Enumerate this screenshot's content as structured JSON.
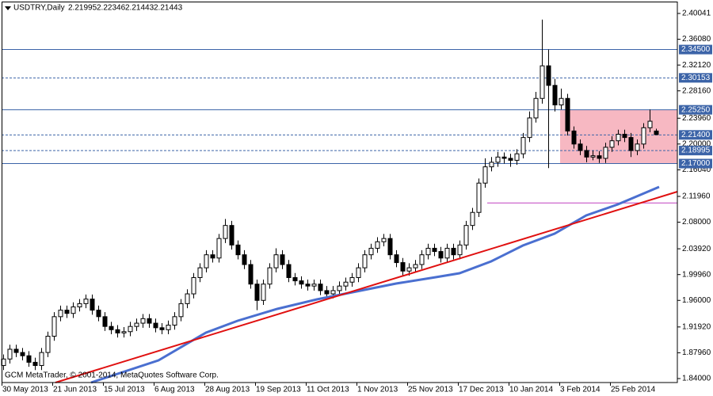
{
  "chart_data": {
    "type": "candlestick",
    "symbol": "USDTRY,Daily",
    "footer": "GCM MetaTrader, © 2001-2014, MetaQuotes Software Corp.",
    "ylim": [
      1.8339,
      2.4174
    ],
    "yticks": [
      2.40041,
      {
        "value": 2.3608,
        "label": "2.36080"
      },
      {
        "value": 2.3212,
        "label": "2.32120"
      },
      {
        "value": 2.2816,
        "label": "2.28160"
      },
      {
        "value": 2.2396,
        "label": "2.23960"
      },
      {
        "value": 2.2,
        "label": "2.20000"
      },
      {
        "value": 2.1604,
        "label": "2.16040"
      },
      {
        "value": 2.1196,
        "label": "2.11960"
      },
      {
        "value": 2.08,
        "label": "2.08000"
      },
      {
        "value": 2.0392,
        "label": "2.03920"
      },
      {
        "value": 1.9996,
        "label": "1.99960"
      },
      {
        "value": 1.96,
        "label": "1.96000"
      },
      {
        "value": 1.9192,
        "label": "1.91920"
      },
      {
        "value": 1.8796,
        "label": "1.87960"
      },
      {
        "value": 1.84,
        "label": "1.84000"
      }
    ],
    "levels": [
      {
        "value": 2.345,
        "label": "2.34500",
        "style": "solid"
      },
      {
        "value": 2.30153,
        "style": "dashed"
      },
      {
        "value": 2.2525,
        "label": "2.25250",
        "style": "solid"
      },
      {
        "value": 2.214,
        "label": "2.21400",
        "style": "dashed"
      },
      {
        "value": 2.18995,
        "style": "dashed"
      },
      {
        "value": 2.17,
        "label": "2.17000",
        "style": "solid"
      }
    ],
    "zone": [
      2.17,
      2.2525
    ],
    "horizontal_line": 2.1096,
    "bull_color": "#ffffff",
    "bear_color": "#000000",
    "level_color": "#3c64a8",
    "zone_color": "#f7b8c2",
    "categories": [
      "30 May 2013",
      null,
      null,
      null,
      null,
      null,
      null,
      null,
      "21 Jun 2013",
      null,
      null,
      null,
      null,
      null,
      null,
      null,
      "15 Jul 2013",
      null,
      null,
      null,
      null,
      null,
      null,
      null,
      "6 Aug 2013",
      null,
      null,
      null,
      null,
      null,
      null,
      null,
      "28 Aug 2013",
      null,
      null,
      null,
      null,
      null,
      null,
      null,
      "19 Sep 2013",
      null,
      null,
      null,
      null,
      null,
      null,
      null,
      "11 Oct 2013",
      null,
      null,
      null,
      null,
      null,
      null,
      null,
      "1 Nov 2013",
      null,
      null,
      null,
      null,
      null,
      null,
      null,
      "25 Nov 2013",
      null,
      null,
      null,
      null,
      null,
      null,
      null,
      "17 Dec 2013",
      null,
      null,
      null,
      null,
      null,
      null,
      null,
      "10 Jan 2014",
      null,
      null,
      null,
      null,
      null,
      null,
      null,
      "3 Feb 2014",
      null,
      null,
      null,
      null,
      null,
      null,
      null,
      "25 Feb 2014",
      null,
      null,
      null,
      null,
      null,
      null,
      null
    ],
    "candles": [
      [
        1.86,
        1.877,
        1.853,
        1.87
      ],
      [
        1.87,
        1.892,
        1.863,
        1.885
      ],
      [
        1.885,
        1.892,
        1.873,
        1.88
      ],
      [
        1.88,
        1.887,
        1.868,
        1.875
      ],
      [
        1.875,
        1.882,
        1.858,
        1.865
      ],
      [
        1.865,
        1.872,
        1.853,
        1.86
      ],
      [
        1.86,
        1.887,
        1.853,
        1.88
      ],
      [
        1.88,
        1.912,
        1.873,
        1.905
      ],
      [
        1.905,
        1.942,
        1.898,
        1.935
      ],
      [
        1.935,
        1.952,
        1.928,
        1.945
      ],
      [
        1.945,
        1.952,
        1.933,
        1.94
      ],
      [
        1.94,
        1.957,
        1.933,
        1.95
      ],
      [
        1.95,
        1.962,
        1.943,
        1.955
      ],
      [
        1.955,
        1.969,
        1.948,
        1.962
      ],
      [
        1.962,
        1.969,
        1.938,
        1.945
      ],
      [
        1.945,
        1.952,
        1.928,
        1.935
      ],
      [
        1.935,
        1.942,
        1.913,
        1.92
      ],
      [
        1.92,
        1.927,
        1.908,
        1.915
      ],
      [
        1.915,
        1.922,
        1.903,
        1.91
      ],
      [
        1.91,
        1.919,
        1.903,
        1.912
      ],
      [
        1.912,
        1.927,
        1.905,
        1.92
      ],
      [
        1.92,
        1.932,
        1.913,
        1.925
      ],
      [
        1.925,
        1.939,
        1.918,
        1.932
      ],
      [
        1.932,
        1.939,
        1.918,
        1.925
      ],
      [
        1.925,
        1.932,
        1.911,
        1.918
      ],
      [
        1.918,
        1.925,
        1.908,
        1.915
      ],
      [
        1.915,
        1.929,
        1.908,
        1.922
      ],
      [
        1.922,
        1.942,
        1.915,
        1.935
      ],
      [
        1.935,
        1.962,
        1.928,
        1.955
      ],
      [
        1.955,
        1.977,
        1.948,
        1.97
      ],
      [
        1.97,
        2.002,
        1.963,
        1.995
      ],
      [
        1.995,
        2.017,
        1.988,
        2.01
      ],
      [
        2.01,
        2.037,
        2.003,
        2.03
      ],
      [
        2.03,
        2.037,
        2.018,
        2.025
      ],
      [
        2.025,
        2.062,
        2.018,
        2.055
      ],
      [
        2.055,
        2.085,
        2.048,
        2.075
      ],
      [
        2.075,
        2.082,
        2.038,
        2.045
      ],
      [
        2.045,
        2.052,
        2.023,
        2.03
      ],
      [
        2.03,
        2.037,
        2.008,
        2.015
      ],
      [
        2.015,
        2.022,
        1.978,
        1.985
      ],
      [
        1.985,
        1.992,
        1.945,
        1.96
      ],
      [
        1.96,
        1.992,
        1.953,
        1.985
      ],
      [
        1.985,
        2.017,
        1.978,
        2.01
      ],
      [
        2.01,
        2.04,
        2.003,
        2.03
      ],
      [
        2.03,
        2.037,
        2.008,
        2.015
      ],
      [
        2.015,
        2.022,
        1.988,
        1.995
      ],
      [
        1.995,
        2.002,
        1.983,
        1.99
      ],
      [
        1.99,
        1.997,
        1.978,
        1.985
      ],
      [
        1.985,
        1.992,
        1.975,
        1.982
      ],
      [
        1.982,
        1.992,
        1.975,
        1.985
      ],
      [
        1.985,
        1.992,
        1.968,
        1.975
      ],
      [
        1.975,
        1.982,
        1.963,
        1.97
      ],
      [
        1.97,
        1.982,
        1.963,
        1.975
      ],
      [
        1.975,
        1.989,
        1.968,
        1.982
      ],
      [
        1.982,
        1.995,
        1.975,
        1.988
      ],
      [
        1.988,
        2.002,
        1.981,
        1.995
      ],
      [
        1.995,
        2.017,
        1.988,
        2.01
      ],
      [
        2.01,
        2.037,
        2.003,
        2.03
      ],
      [
        2.03,
        2.047,
        2.023,
        2.04
      ],
      [
        2.04,
        2.057,
        2.033,
        2.05
      ],
      [
        2.05,
        2.062,
        2.043,
        2.055
      ],
      [
        2.055,
        2.062,
        2.023,
        2.03
      ],
      [
        2.03,
        2.037,
        2.011,
        2.018
      ],
      [
        2.018,
        2.025,
        1.998,
        2.005
      ],
      [
        2.005,
        2.017,
        1.998,
        2.01
      ],
      [
        2.01,
        2.022,
        2.003,
        2.015
      ],
      [
        2.015,
        2.037,
        2.008,
        2.03
      ],
      [
        2.03,
        2.047,
        2.023,
        2.04
      ],
      [
        2.04,
        2.047,
        2.028,
        2.035
      ],
      [
        2.035,
        2.042,
        2.018,
        2.025
      ],
      [
        2.025,
        2.047,
        2.018,
        2.04
      ],
      [
        2.04,
        2.047,
        2.023,
        2.03
      ],
      [
        2.03,
        2.052,
        2.023,
        2.045
      ],
      [
        2.045,
        2.082,
        2.038,
        2.075
      ],
      [
        2.075,
        2.102,
        2.068,
        2.095
      ],
      [
        2.095,
        2.147,
        2.088,
        2.14
      ],
      [
        2.14,
        2.178,
        2.133,
        2.165
      ],
      [
        2.165,
        2.18,
        2.158,
        2.172
      ],
      [
        2.172,
        2.188,
        2.165,
        2.18
      ],
      [
        2.18,
        2.187,
        2.17,
        2.178
      ],
      [
        2.178,
        2.185,
        2.165,
        2.175
      ],
      [
        2.175,
        2.192,
        2.168,
        2.185
      ],
      [
        2.185,
        2.217,
        2.178,
        2.21
      ],
      [
        2.21,
        2.25,
        2.203,
        2.24
      ],
      [
        2.24,
        2.28,
        2.233,
        2.27
      ],
      [
        2.27,
        2.391,
        2.262,
        2.32
      ],
      [
        2.32,
        2.345,
        2.163,
        2.29
      ],
      [
        2.29,
        2.3,
        2.25,
        2.26
      ],
      [
        2.26,
        2.285,
        2.253,
        2.27
      ],
      [
        2.27,
        2.277,
        2.213,
        2.22
      ],
      [
        2.22,
        2.227,
        2.193,
        2.2
      ],
      [
        2.2,
        2.207,
        2.183,
        2.19
      ],
      [
        2.19,
        2.197,
        2.172,
        2.18
      ],
      [
        2.18,
        2.19,
        2.175,
        2.182
      ],
      [
        2.182,
        2.189,
        2.171,
        2.178
      ],
      [
        2.178,
        2.202,
        2.171,
        2.195
      ],
      [
        2.195,
        2.212,
        2.188,
        2.205
      ],
      [
        2.205,
        2.222,
        2.198,
        2.215
      ],
      [
        2.215,
        2.222,
        2.203,
        2.21
      ],
      [
        2.21,
        2.217,
        2.18,
        2.19
      ],
      [
        2.19,
        2.207,
        2.183,
        2.2
      ],
      [
        2.2,
        2.232,
        2.193,
        2.225
      ],
      [
        2.225,
        2.253,
        2.218,
        2.235
      ],
      [
        2.21995,
        2.22346,
        2.21443,
        2.21443
      ]
    ]
  }
}
